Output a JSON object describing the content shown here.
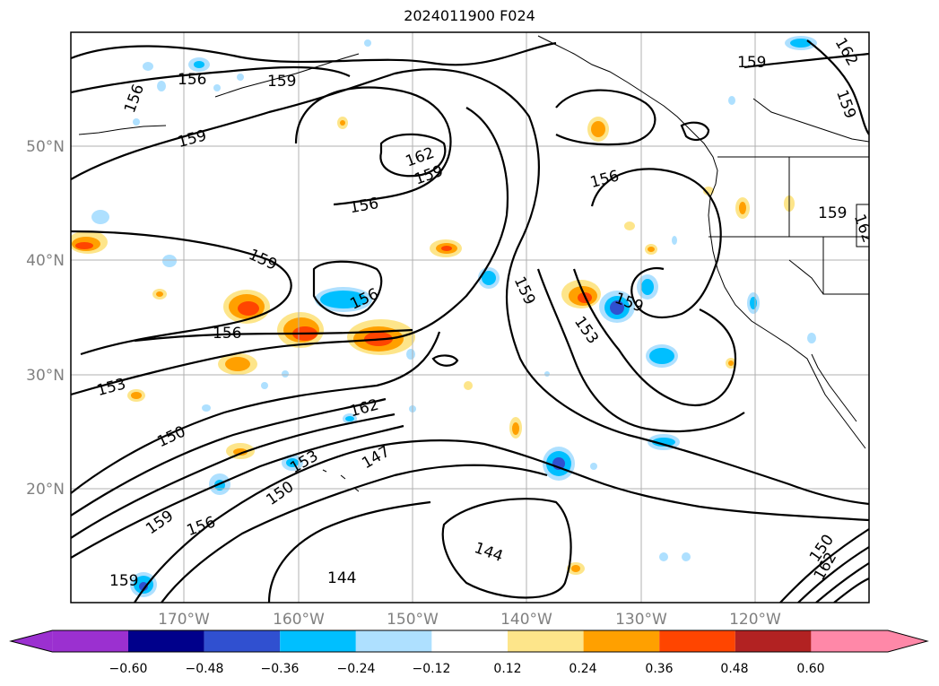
{
  "title": "2024011900 F024",
  "map": {
    "lat_ticks": [
      "20°N",
      "30°N",
      "40°N",
      "50°N"
    ],
    "lon_ticks": [
      "170°W",
      "160°W",
      "150°W",
      "140°W",
      "130°W",
      "120°W"
    ],
    "contour_labels": [
      "156",
      "156",
      "159",
      "159",
      "162",
      "159",
      "156",
      "156",
      "159",
      "156",
      "153",
      "156",
      "159",
      "153",
      "159",
      "150",
      "162",
      "153",
      "147",
      "150",
      "159",
      "156",
      "144",
      "144",
      "159",
      "162",
      "159",
      "159",
      "159",
      "150",
      "162",
      "162"
    ]
  },
  "colorbar": {
    "ticks": [
      "−0.60",
      "−0.48",
      "−0.36",
      "−0.24",
      "−0.12",
      "0.12",
      "0.24",
      "0.36",
      "0.48",
      "0.60"
    ],
    "colors": [
      "#9b30d0",
      "#00008b",
      "#3050d0",
      "#00bfff",
      "#aee0ff",
      "#ffffff",
      "#fde58a",
      "#ffa000",
      "#ff4500",
      "#b22222",
      "#ff88a8"
    ]
  }
}
